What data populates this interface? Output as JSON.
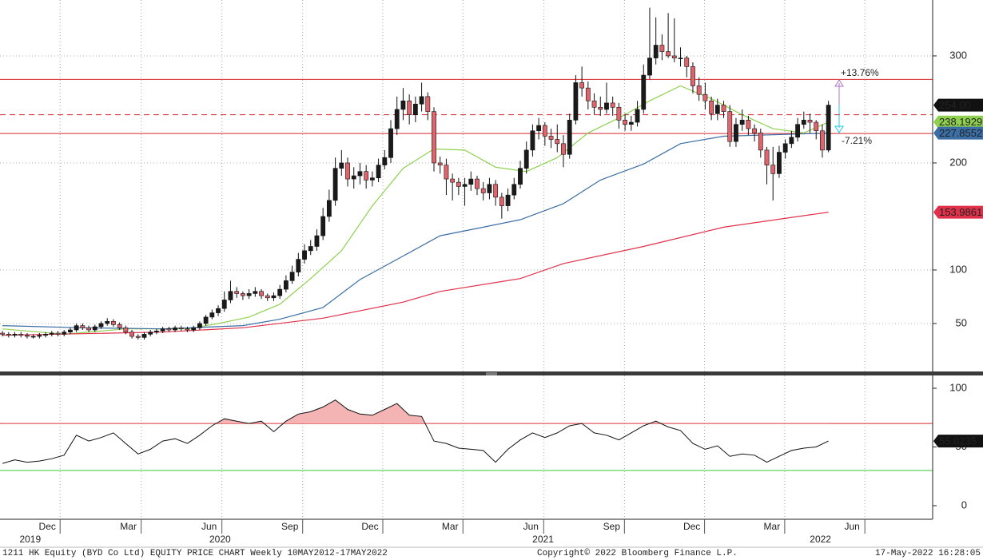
{
  "chart_data": {
    "type": "candlestick",
    "title": "1211 HK Equity (BYD Co Ltd) EQUITY PRICE CHART  Weekly 10MAY2012-17MAY2022",
    "copyright": "Copyright© 2022 Bloomberg Finance L.P.",
    "timestamp": "17-May-2022 16:28:05",
    "up_color": "#1a1a1a",
    "down_color": "#e0646c",
    "ohlc": [
      [
        41,
        43,
        38,
        40
      ],
      [
        40,
        42,
        37,
        39
      ],
      [
        39,
        42,
        37,
        40
      ],
      [
        40,
        42,
        37,
        39
      ],
      [
        39,
        41,
        36,
        38
      ],
      [
        38,
        40,
        36,
        38
      ],
      [
        38,
        41,
        36,
        39
      ],
      [
        39,
        42,
        37,
        40
      ],
      [
        40,
        43,
        38,
        41
      ],
      [
        41,
        43,
        38,
        40
      ],
      [
        40,
        44,
        38,
        42
      ],
      [
        42,
        46,
        40,
        44
      ],
      [
        44,
        50,
        42,
        48
      ],
      [
        48,
        50,
        44,
        46
      ],
      [
        46,
        48,
        42,
        44
      ],
      [
        44,
        49,
        42,
        47
      ],
      [
        47,
        52,
        45,
        50
      ],
      [
        50,
        55,
        48,
        52
      ],
      [
        52,
        54,
        47,
        49
      ],
      [
        49,
        51,
        44,
        46
      ],
      [
        46,
        48,
        40,
        42
      ],
      [
        42,
        44,
        36,
        38
      ],
      [
        38,
        40,
        35,
        37
      ],
      [
        37,
        42,
        35,
        40
      ],
      [
        40,
        44,
        38,
        42
      ],
      [
        42,
        45,
        40,
        43
      ],
      [
        43,
        47,
        41,
        45
      ],
      [
        45,
        47,
        42,
        44
      ],
      [
        44,
        48,
        42,
        46
      ],
      [
        46,
        48,
        43,
        45
      ],
      [
        45,
        47,
        42,
        44
      ],
      [
        44,
        48,
        42,
        46
      ],
      [
        46,
        52,
        44,
        50
      ],
      [
        50,
        58,
        48,
        56
      ],
      [
        56,
        63,
        54,
        60
      ],
      [
        60,
        67,
        57,
        64
      ],
      [
        64,
        80,
        61,
        72
      ],
      [
        72,
        90,
        69,
        80
      ],
      [
        80,
        84,
        74,
        78
      ],
      [
        78,
        80,
        72,
        76
      ],
      [
        76,
        82,
        73,
        78
      ],
      [
        78,
        84,
        75,
        80
      ],
      [
        80,
        82,
        73,
        76
      ],
      [
        76,
        78,
        71,
        74
      ],
      [
        74,
        79,
        71,
        76
      ],
      [
        76,
        86,
        73,
        82
      ],
      [
        82,
        95,
        79,
        90
      ],
      [
        90,
        104,
        87,
        98
      ],
      [
        98,
        116,
        94,
        110
      ],
      [
        110,
        124,
        106,
        118
      ],
      [
        118,
        128,
        114,
        122
      ],
      [
        122,
        138,
        118,
        132
      ],
      [
        132,
        158,
        128,
        150
      ],
      [
        150,
        175,
        145,
        165
      ],
      [
        165,
        205,
        160,
        195
      ],
      [
        195,
        212,
        188,
        200
      ],
      [
        200,
        205,
        178,
        185
      ],
      [
        185,
        196,
        176,
        188
      ],
      [
        188,
        200,
        180,
        192
      ],
      [
        192,
        198,
        176,
        184
      ],
      [
        184,
        192,
        178,
        186
      ],
      [
        186,
        204,
        182,
        198
      ],
      [
        198,
        212,
        194,
        205
      ],
      [
        205,
        240,
        200,
        232
      ],
      [
        232,
        262,
        226,
        250
      ],
      [
        250,
        270,
        240,
        258
      ],
      [
        258,
        264,
        236,
        245
      ],
      [
        245,
        262,
        238,
        255
      ],
      [
        255,
        275,
        248,
        262
      ],
      [
        262,
        266,
        240,
        248
      ],
      [
        248,
        252,
        192,
        200
      ],
      [
        200,
        206,
        190,
        198
      ],
      [
        198,
        204,
        170,
        185
      ],
      [
        185,
        190,
        165,
        182
      ],
      [
        182,
        186,
        170,
        178
      ],
      [
        178,
        186,
        160,
        180
      ],
      [
        180,
        192,
        174,
        185
      ],
      [
        185,
        188,
        170,
        176
      ],
      [
        176,
        182,
        165,
        172
      ],
      [
        172,
        186,
        166,
        180
      ],
      [
        180,
        184,
        160,
        168
      ],
      [
        168,
        172,
        148,
        160
      ],
      [
        160,
        176,
        155,
        170
      ],
      [
        170,
        186,
        166,
        180
      ],
      [
        180,
        202,
        176,
        195
      ],
      [
        195,
        220,
        190,
        212
      ],
      [
        212,
        236,
        206,
        230
      ],
      [
        230,
        242,
        222,
        235
      ],
      [
        235,
        238,
        216,
        225
      ],
      [
        225,
        232,
        214,
        222
      ],
      [
        222,
        236,
        210,
        218
      ],
      [
        218,
        226,
        196,
        208
      ],
      [
        208,
        246,
        204,
        240
      ],
      [
        240,
        282,
        236,
        275
      ],
      [
        275,
        290,
        262,
        270
      ],
      [
        270,
        276,
        250,
        258
      ],
      [
        258,
        265,
        245,
        252
      ],
      [
        252,
        262,
        244,
        250
      ],
      [
        250,
        275,
        246,
        256
      ],
      [
        256,
        262,
        244,
        252
      ],
      [
        252,
        256,
        232,
        240
      ],
      [
        240,
        246,
        230,
        236
      ],
      [
        236,
        244,
        230,
        238
      ],
      [
        238,
        258,
        234,
        250
      ],
      [
        250,
        292,
        246,
        282
      ],
      [
        282,
        345,
        278,
        298
      ],
      [
        298,
        336,
        292,
        310
      ],
      [
        310,
        320,
        296,
        304
      ],
      [
        304,
        340,
        298,
        300
      ],
      [
        300,
        335,
        294,
        298
      ],
      [
        298,
        308,
        290,
        298
      ],
      [
        298,
        300,
        280,
        290
      ],
      [
        290,
        294,
        265,
        272
      ],
      [
        272,
        280,
        258,
        264
      ],
      [
        264,
        275,
        250,
        258
      ],
      [
        258,
        262,
        240,
        246
      ],
      [
        246,
        260,
        240,
        254
      ],
      [
        254,
        258,
        242,
        248
      ],
      [
        248,
        254,
        215,
        220
      ],
      [
        220,
        242,
        215,
        236
      ],
      [
        236,
        250,
        230,
        240
      ],
      [
        240,
        244,
        226,
        232
      ],
      [
        232,
        236,
        220,
        228
      ],
      [
        228,
        232,
        205,
        212
      ],
      [
        212,
        215,
        180,
        198
      ],
      [
        198,
        215,
        165,
        190
      ],
      [
        190,
        216,
        186,
        210
      ],
      [
        210,
        222,
        204,
        218
      ],
      [
        218,
        230,
        214,
        224
      ],
      [
        224,
        242,
        220,
        236
      ],
      [
        236,
        248,
        232,
        240
      ],
      [
        240,
        246,
        228,
        238
      ],
      [
        238,
        240,
        222,
        230
      ],
      [
        230,
        236,
        205,
        212
      ],
      [
        212,
        258,
        210,
        254
      ]
    ],
    "last_price_label": "254.00",
    "moving_averages": [
      {
        "color": "#8fd14f",
        "x": [
          0,
          10,
          20,
          30,
          35,
          40,
          45,
          50,
          55,
          60,
          65,
          70,
          75,
          80,
          85,
          90,
          95,
          100,
          105,
          110,
          115,
          120,
          125,
          130,
          134
        ],
        "values": [
          45,
          40,
          45,
          45,
          50,
          56,
          68,
          92,
          118,
          160,
          195,
          213,
          212,
          196,
          192,
          205,
          228,
          242,
          258,
          272,
          260,
          245,
          232,
          228,
          238.1929
        ]
      },
      {
        "color": "#3a6ea5",
        "x": [
          0,
          13,
          26,
          39,
          45,
          52,
          58,
          65,
          71,
          78,
          84,
          91,
          97,
          104,
          110,
          117,
          134
        ],
        "values": [
          48,
          46,
          45,
          48,
          54,
          65,
          91,
          113,
          132,
          140,
          147,
          162,
          184,
          199,
          218,
          225,
          227.8552
        ]
      },
      {
        "color": "#e0304a",
        "x": [
          0,
          26,
          39,
          52,
          65,
          71,
          84,
          91,
          104,
          117,
          134
        ],
        "values": [
          39,
          42,
          46,
          55,
          70,
          80,
          92,
          106,
          122,
          140,
          153.9861
        ]
      }
    ],
    "levels": [
      {
        "value": 278,
        "dashed": false
      },
      {
        "value": 245,
        "dashed": true
      },
      {
        "value": 227.5,
        "dashed": false
      }
    ],
    "level_color": "#d9262e",
    "annotations": [
      {
        "label": "+13.76%",
        "color": "#b070c8"
      },
      {
        "label": "-7.21%",
        "color": "#22c8e8"
      }
    ],
    "ylim": [
      5.2,
      352.2
    ],
    "yticks": [
      50,
      100,
      200,
      300
    ],
    "xlim": [
      -0.4,
      150.9
    ],
    "xticks": [
      {
        "value": 9.35,
        "label": "Dec"
      },
      {
        "value": 22.5,
        "label": "Mar"
      },
      {
        "value": 35.6,
        "label": "Jun"
      },
      {
        "value": 48.7,
        "label": "Sep"
      },
      {
        "value": 61.7,
        "label": "Dec"
      },
      {
        "value": 74.7,
        "label": "Mar"
      },
      {
        "value": 87.8,
        "label": "Jun"
      },
      {
        "value": 100.9,
        "label": "Sep"
      },
      {
        "value": 113.9,
        "label": "Dec"
      },
      {
        "value": 126.9,
        "label": "Mar"
      },
      {
        "value": 139.9,
        "label": "Jun"
      }
    ],
    "year_ticks": [
      {
        "value": 4.5,
        "label": "2019"
      },
      {
        "value": 35.3,
        "label": "2020"
      },
      {
        "value": 87.7,
        "label": "2021"
      },
      {
        "value": 132.7,
        "label": "2022"
      }
    ],
    "rsi": {
      "color": "#111111",
      "fill": "#f4b4b4",
      "x": [
        0,
        2,
        4,
        6,
        8,
        10,
        12,
        14,
        16,
        18,
        20,
        22,
        24,
        26,
        28,
        30,
        32,
        34,
        36,
        38,
        40,
        42,
        44,
        46,
        48,
        50,
        52,
        54,
        56,
        58,
        60,
        62,
        64,
        66,
        68,
        70,
        72,
        74,
        76,
        78,
        80,
        82,
        84,
        86,
        88,
        90,
        92,
        94,
        96,
        98,
        100,
        102,
        104,
        106,
        108,
        110,
        112,
        114,
        116,
        118,
        120,
        122,
        124,
        126,
        128,
        130,
        132,
        134
      ],
      "values": [
        36,
        39,
        37,
        38,
        40,
        43,
        60,
        55,
        58,
        62,
        53,
        44,
        48,
        55,
        57,
        53,
        60,
        68,
        74,
        72,
        70,
        72,
        63,
        72,
        78,
        80,
        84,
        90,
        82,
        78,
        77,
        82,
        87,
        77,
        76,
        55,
        53,
        49,
        48,
        47,
        37,
        48,
        56,
        62,
        58,
        62,
        68,
        70,
        62,
        60,
        56,
        62,
        68,
        72,
        67,
        64,
        53,
        48,
        51,
        42,
        44,
        43,
        37,
        42,
        47,
        49,
        50,
        55.0235
      ],
      "ylim": [
        -11.6,
        110.9
      ],
      "yticks": [
        0,
        50,
        100
      ],
      "upper": 70,
      "lower": 30,
      "upper_color": "#d9262e",
      "lower_color": "#33cc33"
    }
  }
}
